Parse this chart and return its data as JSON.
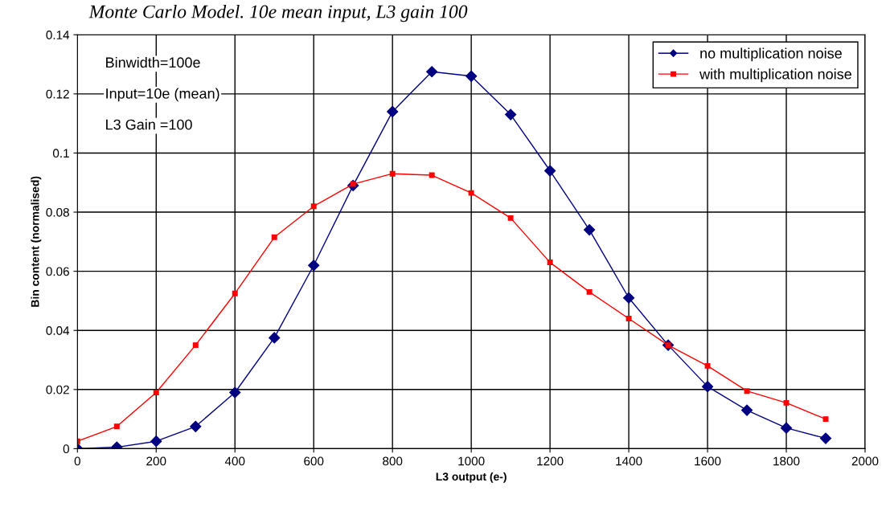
{
  "chart_data": {
    "type": "line",
    "title": "Monte Carlo Model. 10e mean input, L3 gain 100",
    "xlabel": "L3 output (e-)",
    "ylabel": "Bin content (normalised)",
    "x": [
      0,
      100,
      200,
      300,
      400,
      500,
      600,
      700,
      800,
      900,
      1000,
      1100,
      1200,
      1300,
      1400,
      1500,
      1600,
      1700,
      1800,
      1900
    ],
    "series": [
      {
        "name": "no multiplication noise",
        "color": "#000080",
        "marker": "diamond",
        "values": [
          0.0,
          0.0005,
          0.0025,
          0.0075,
          0.019,
          0.0375,
          0.062,
          0.089,
          0.114,
          0.1275,
          0.126,
          0.113,
          0.094,
          0.074,
          0.051,
          0.035,
          0.021,
          0.013,
          0.007,
          0.0035
        ]
      },
      {
        "name": "with multiplication noise",
        "color": "#ff0000",
        "marker": "square",
        "values": [
          0.0025,
          0.0075,
          0.019,
          0.035,
          0.0525,
          0.0715,
          0.082,
          0.0895,
          0.093,
          0.0925,
          0.0865,
          0.078,
          0.063,
          0.053,
          0.044,
          0.035,
          0.028,
          0.0195,
          0.0155,
          0.01
        ]
      }
    ],
    "xlim": [
      0,
      2000
    ],
    "xticks": [
      0,
      200,
      400,
      600,
      800,
      1000,
      1200,
      1400,
      1600,
      1800,
      2000
    ],
    "ylim": [
      0,
      0.14
    ],
    "yticks": [
      0,
      0.02,
      0.04,
      0.06,
      0.08,
      0.1,
      0.12,
      0.14
    ],
    "grid": true,
    "legend": "top right",
    "annotations": [
      "Binwidth=100e",
      "Input=10e (mean)",
      "L3 Gain =100"
    ]
  }
}
